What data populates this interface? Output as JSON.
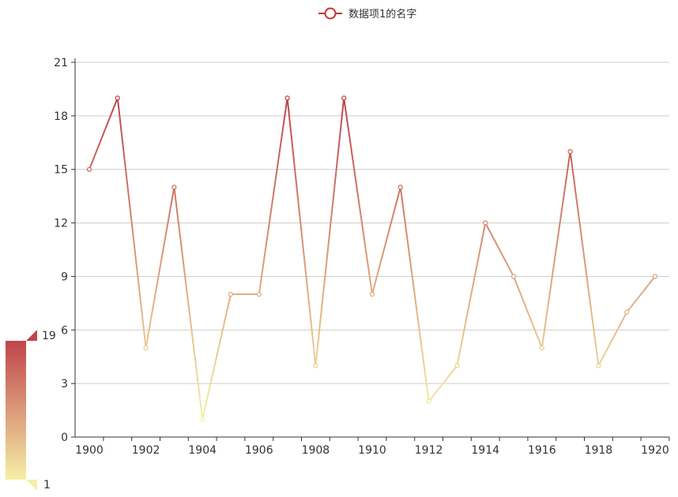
{
  "chart_data": {
    "type": "line",
    "title": "",
    "xlabel": "",
    "ylabel": "",
    "x": [
      "1900",
      "1901",
      "1902",
      "1903",
      "1904",
      "1905",
      "1906",
      "1907",
      "1908",
      "1909",
      "1910",
      "1911",
      "1912",
      "1913",
      "1914",
      "1915",
      "1916",
      "1917",
      "1918",
      "1919",
      "1920"
    ],
    "x_tick_labels": [
      "1900",
      "1902",
      "1904",
      "1906",
      "1908",
      "1910",
      "1912",
      "1914",
      "1916",
      "1918",
      "1920"
    ],
    "series": [
      {
        "name": "数据项1的名字",
        "values": [
          15,
          19,
          5,
          14,
          1,
          8,
          8,
          19,
          4,
          19,
          8,
          14,
          2,
          4,
          12,
          9,
          5,
          16,
          4,
          7,
          9
        ]
      }
    ],
    "ylim": [
      0,
      21
    ],
    "y_ticks": [
      0,
      3,
      6,
      9,
      12,
      15,
      18,
      21
    ],
    "grid": true,
    "legend_position": "top-center",
    "visual_map": {
      "min_label": "1",
      "max_label": "19",
      "min": 1,
      "max": 19,
      "color_low": "#f6efa6",
      "color_high": "#bf444c"
    },
    "colors": {
      "axis": "#333333",
      "grid": "#cccccc"
    }
  }
}
